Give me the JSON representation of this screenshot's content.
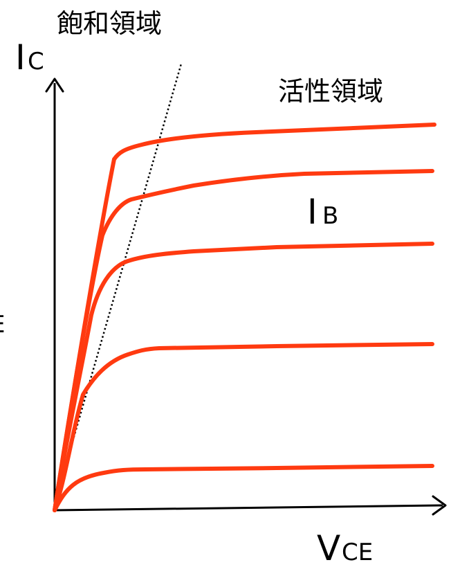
{
  "labels": {
    "saturation_region": "飽和領域",
    "active_region": "活性領域",
    "y_axis_main": "I",
    "y_axis_sub": "C",
    "x_axis_main": "V",
    "x_axis_sub": "CE",
    "curve_family_main": "I",
    "curve_family_sub": "B",
    "left_edge_fragment": "E"
  },
  "colors": {
    "curve": "#ff3a10",
    "axis": "#000000",
    "background": "#ffffff"
  },
  "curve_count": 5
}
